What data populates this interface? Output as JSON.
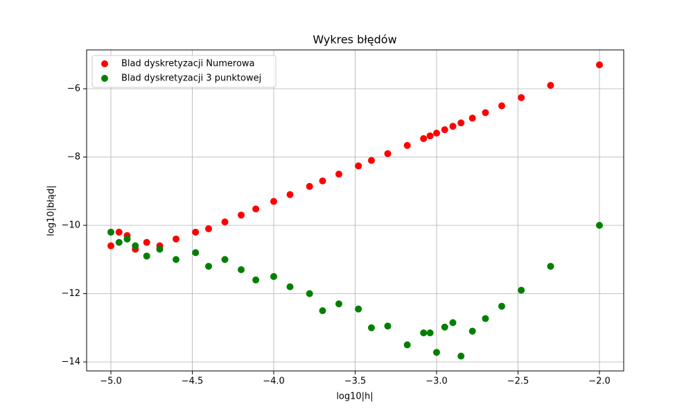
{
  "chart_data": {
    "type": "scatter",
    "title": "Wykres błędów",
    "x_label": "log10|h|",
    "y_label": "log10|błąd|",
    "x": [
      -2,
      -2.3,
      -2.48,
      -2.6,
      -2.7,
      -2.78,
      -2.85,
      -2.9,
      -2.95,
      -3,
      -3.04,
      -3.08,
      -3.18,
      -3.3,
      -3.4,
      -3.48,
      -3.6,
      -3.7,
      -3.78,
      -3.9,
      -4,
      -4.11,
      -4.2,
      -4.3,
      -4.4,
      -4.48,
      -4.6,
      -4.7,
      -4.78,
      -4.85,
      -4.9,
      -4.95,
      -5
    ],
    "series": [
      {
        "name": "Blad dyskretyzacji Numerowa",
        "color": "#ff0000",
        "values": [
          -5.3,
          -5.9,
          -6.26,
          -6.5,
          -6.7,
          -6.86,
          -7.0,
          -7.1,
          -7.2,
          -7.3,
          -7.38,
          -7.46,
          -7.66,
          -7.9,
          -8.1,
          -8.26,
          -8.5,
          -8.7,
          -8.86,
          -9.1,
          -9.3,
          -9.52,
          -9.7,
          -9.9,
          -10.1,
          -10.2,
          -10.4,
          -10.6,
          -10.5,
          -10.7,
          -10.3,
          -10.2,
          -10.6
        ]
      },
      {
        "name": "Blad dyskretyzacji 3 punktowej",
        "color": "#008000",
        "values": [
          -10,
          -11.2,
          -11.9,
          -12.37,
          -12.73,
          -13.1,
          -13.83,
          -12.85,
          -12.98,
          -13.72,
          -13.15,
          -13.15,
          -13.5,
          -12.95,
          -13.0,
          -12.45,
          -12.3,
          -12.5,
          -12.0,
          -11.8,
          -11.5,
          -11.6,
          -11.3,
          -11.0,
          -11.2,
          -10.8,
          -11.0,
          -10.7,
          -10.9,
          -10.6,
          -10.4,
          -10.5,
          -10.2
        ]
      }
    ],
    "xlim": [
      -5.149,
      -1.851
    ],
    "ylim": [
      -14.264,
      -4.863
    ],
    "xticks": [
      {
        "value": -5,
        "label": "−5.0"
      },
      {
        "value": -4.5,
        "label": "−4.5"
      },
      {
        "value": -4,
        "label": "−4.0"
      },
      {
        "value": -3.5,
        "label": "−3.5"
      },
      {
        "value": -3,
        "label": "−3.0"
      },
      {
        "value": -2.5,
        "label": "−2.5"
      },
      {
        "value": -2,
        "label": "−2.0"
      }
    ],
    "yticks": [
      {
        "value": -14,
        "label": "−14"
      },
      {
        "value": -12,
        "label": "−12"
      },
      {
        "value": -10,
        "label": "−10"
      },
      {
        "value": -8,
        "label": "−8"
      },
      {
        "value": -6,
        "label": "−6"
      }
    ],
    "grid": true,
    "legend": "upper-left"
  }
}
